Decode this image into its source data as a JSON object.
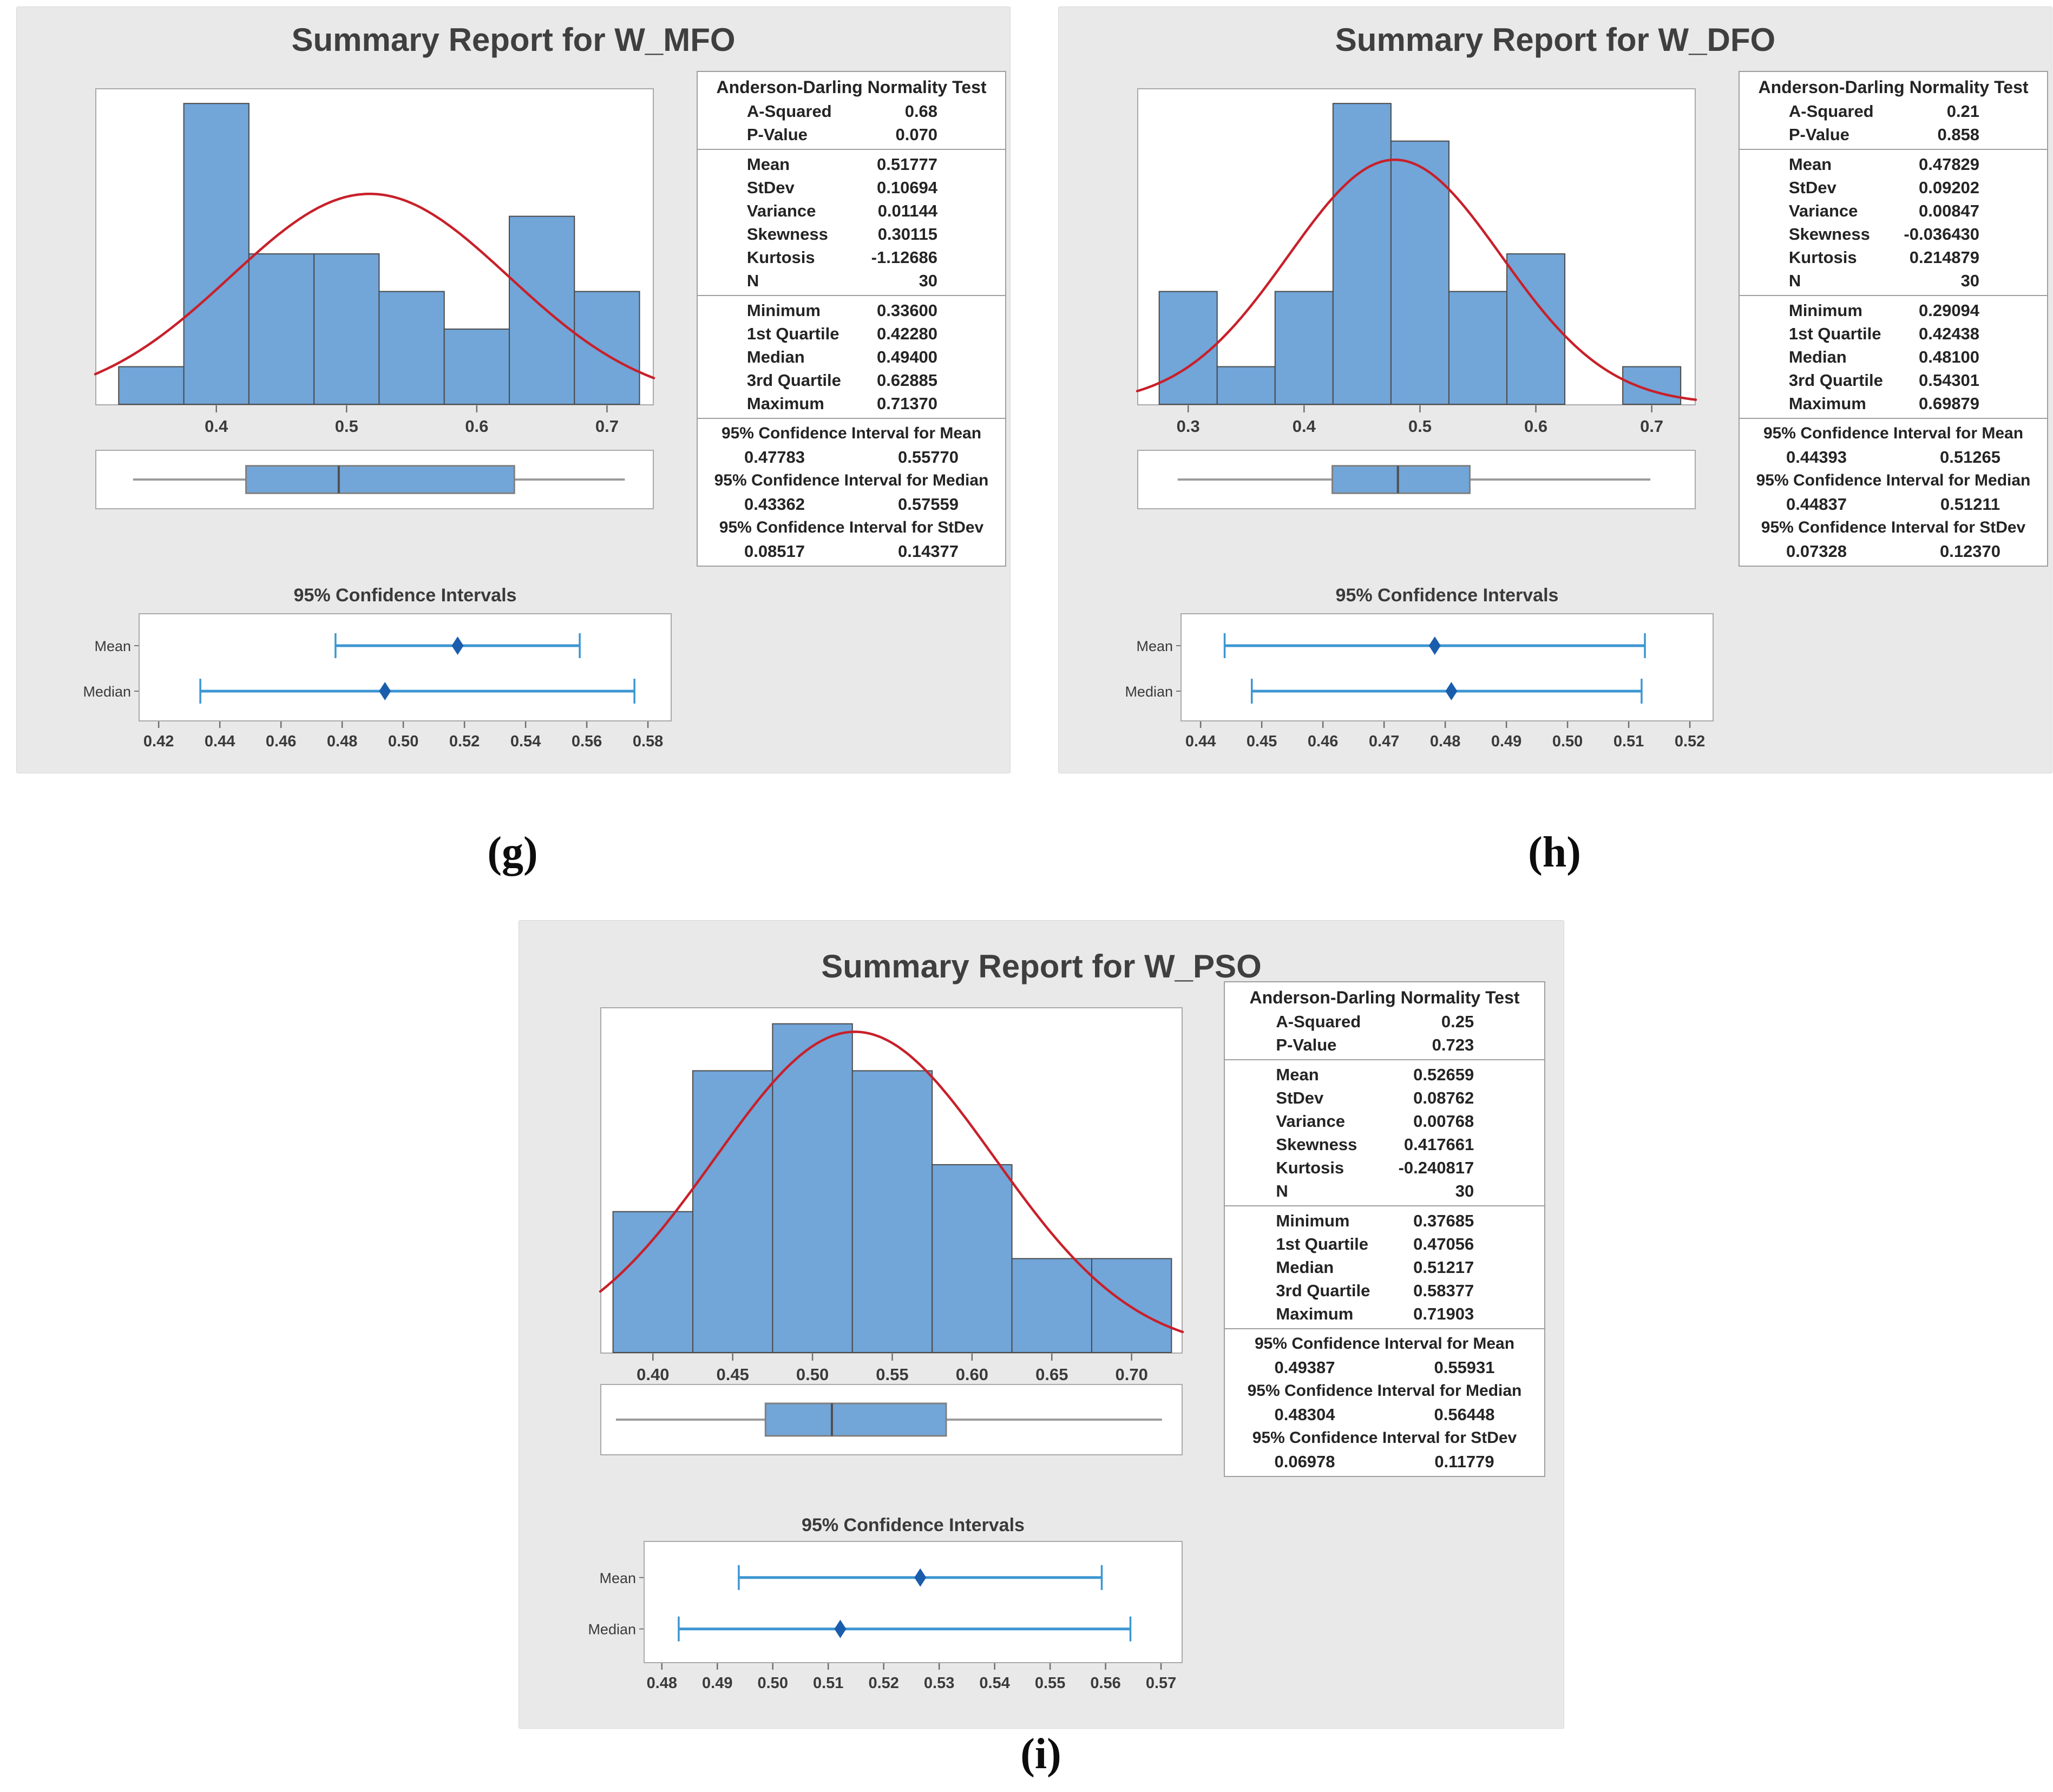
{
  "captions": [
    {
      "label": "(g)"
    },
    {
      "label": "(h)"
    },
    {
      "label": "(i)"
    }
  ],
  "colors": {
    "bar_fill": "#72a5d8",
    "bar_stroke": "#4a4a4a",
    "curve_red": "#c8202a",
    "interval_line": "#3c96d2",
    "interval_marker": "#1a5dad",
    "panel_bg": "#e9e9e9",
    "box_border": "#a9a9a9",
    "text_dark": "#3a3a3a"
  },
  "chart_data": [
    {
      "id": "g",
      "title": "Summary Report for W_MFO",
      "histogram": {
        "type": "histogram",
        "bin_width": 0.05,
        "bin_centers": [
          0.35,
          0.4,
          0.45,
          0.5,
          0.55,
          0.6,
          0.65,
          0.7
        ],
        "counts": [
          1,
          8,
          4,
          4,
          3,
          2,
          5,
          3
        ],
        "xticks": [
          "0.4",
          "0.5",
          "0.6",
          "0.7"
        ],
        "xmin": 0.307,
        "xmax": 0.736,
        "normal_curve": {
          "mean": 0.51777,
          "stdev": 0.10694,
          "n": 30
        }
      },
      "boxplot": {
        "type": "boxplot",
        "min": 0.336,
        "q1": 0.4228,
        "median": 0.494,
        "q3": 0.62885,
        "max": 0.7137
      },
      "stats_table": {
        "test_title": "Anderson-Darling Normality Test",
        "sections": [
          {
            "rows": [
              [
                "A-Squared",
                "0.68"
              ],
              [
                "P-Value",
                "0.070"
              ]
            ]
          },
          {
            "rows": [
              [
                "Mean",
                "0.51777"
              ],
              [
                "StDev",
                "0.10694"
              ],
              [
                "Variance",
                "0.01144"
              ],
              [
                "Skewness",
                "0.30115"
              ],
              [
                "Kurtosis",
                "-1.12686"
              ],
              [
                "N",
                "30"
              ]
            ]
          },
          {
            "rows": [
              [
                "Minimum",
                "0.33600"
              ],
              [
                "1st Quartile",
                "0.42280"
              ],
              [
                "Median",
                "0.49400"
              ],
              [
                "3rd Quartile",
                "0.62885"
              ],
              [
                "Maximum",
                "0.71370"
              ]
            ]
          }
        ],
        "ci_sections": [
          {
            "heading": "95% Confidence Interval for Mean",
            "low": "0.47783",
            "high": "0.55770"
          },
          {
            "heading": "95% Confidence Interval for Median",
            "low": "0.43362",
            "high": "0.57559"
          },
          {
            "heading": "95% Confidence Interval for StDev",
            "low": "0.08517",
            "high": "0.14377"
          }
        ]
      },
      "ci_plot": {
        "type": "interval",
        "title": "95% Confidence Intervals",
        "xticks": [
          "0.42",
          "0.44",
          "0.46",
          "0.48",
          "0.50",
          "0.52",
          "0.54",
          "0.56",
          "0.58"
        ],
        "rows": [
          {
            "label": "Mean",
            "low": 0.47783,
            "high": 0.5577,
            "center": 0.51777
          },
          {
            "label": "Median",
            "low": 0.43362,
            "high": 0.57559,
            "center": 0.494
          }
        ]
      }
    },
    {
      "id": "h",
      "title": "Summary Report for W_DFO",
      "histogram": {
        "type": "histogram",
        "bin_width": 0.05,
        "bin_centers": [
          0.3,
          0.35,
          0.4,
          0.45,
          0.5,
          0.55,
          0.6,
          0.65,
          0.7
        ],
        "counts": [
          3,
          1,
          3,
          8,
          7,
          3,
          4,
          0,
          1
        ],
        "xticks": [
          "0.3",
          "0.4",
          "0.5",
          "0.6",
          "0.7"
        ],
        "xmin": 0.256,
        "xmax": 0.738,
        "normal_curve": {
          "mean": 0.47829,
          "stdev": 0.09202,
          "n": 30
        }
      },
      "boxplot": {
        "type": "boxplot",
        "min": 0.29094,
        "q1": 0.42438,
        "median": 0.481,
        "q3": 0.54301,
        "max": 0.69879
      },
      "stats_table": {
        "test_title": "Anderson-Darling Normality Test",
        "sections": [
          {
            "rows": [
              [
                "A-Squared",
                "0.21"
              ],
              [
                "P-Value",
                "0.858"
              ]
            ]
          },
          {
            "rows": [
              [
                "Mean",
                "0.47829"
              ],
              [
                "StDev",
                "0.09202"
              ],
              [
                "Variance",
                "0.00847"
              ],
              [
                "Skewness",
                "-0.036430"
              ],
              [
                "Kurtosis",
                "0.214879"
              ],
              [
                "N",
                "30"
              ]
            ]
          },
          {
            "rows": [
              [
                "Minimum",
                "0.29094"
              ],
              [
                "1st Quartile",
                "0.42438"
              ],
              [
                "Median",
                "0.48100"
              ],
              [
                "3rd Quartile",
                "0.54301"
              ],
              [
                "Maximum",
                "0.69879"
              ]
            ]
          }
        ],
        "ci_sections": [
          {
            "heading": "95% Confidence Interval for Mean",
            "low": "0.44393",
            "high": "0.51265"
          },
          {
            "heading": "95% Confidence Interval for Median",
            "low": "0.44837",
            "high": "0.51211"
          },
          {
            "heading": "95% Confidence Interval for StDev",
            "low": "0.07328",
            "high": "0.12370"
          }
        ]
      },
      "ci_plot": {
        "type": "interval",
        "title": "95% Confidence Intervals",
        "xticks": [
          "0.44",
          "0.45",
          "0.46",
          "0.47",
          "0.48",
          "0.49",
          "0.50",
          "0.51",
          "0.52"
        ],
        "rows": [
          {
            "label": "Mean",
            "low": 0.44393,
            "high": 0.51265,
            "center": 0.47829
          },
          {
            "label": "Median",
            "low": 0.44837,
            "high": 0.51211,
            "center": 0.481
          }
        ]
      }
    },
    {
      "id": "i",
      "title": "Summary Report for W_PSO",
      "histogram": {
        "type": "histogram",
        "bin_width": 0.05,
        "bin_centers": [
          0.4,
          0.45,
          0.5,
          0.55,
          0.6,
          0.65,
          0.7
        ],
        "counts": [
          3,
          6,
          7,
          6,
          4,
          2,
          2
        ],
        "xticks": [
          "0.40",
          "0.45",
          "0.50",
          "0.55",
          "0.60",
          "0.65",
          "0.70"
        ],
        "xmin": 0.367,
        "xmax": 0.732,
        "normal_curve": {
          "mean": 0.52659,
          "stdev": 0.08762,
          "n": 30
        }
      },
      "boxplot": {
        "type": "boxplot",
        "min": 0.37685,
        "q1": 0.47056,
        "median": 0.51217,
        "q3": 0.58377,
        "max": 0.71903
      },
      "stats_table": {
        "test_title": "Anderson-Darling Normality Test",
        "sections": [
          {
            "rows": [
              [
                "A-Squared",
                "0.25"
              ],
              [
                "P-Value",
                "0.723"
              ]
            ]
          },
          {
            "rows": [
              [
                "Mean",
                "0.52659"
              ],
              [
                "StDev",
                "0.08762"
              ],
              [
                "Variance",
                "0.00768"
              ],
              [
                "Skewness",
                "0.417661"
              ],
              [
                "Kurtosis",
                "-0.240817"
              ],
              [
                "N",
                "30"
              ]
            ]
          },
          {
            "rows": [
              [
                "Minimum",
                "0.37685"
              ],
              [
                "1st Quartile",
                "0.47056"
              ],
              [
                "Median",
                "0.51217"
              ],
              [
                "3rd Quartile",
                "0.58377"
              ],
              [
                "Maximum",
                "0.71903"
              ]
            ]
          }
        ],
        "ci_sections": [
          {
            "heading": "95% Confidence Interval for Mean",
            "low": "0.49387",
            "high": "0.55931"
          },
          {
            "heading": "95% Confidence Interval for Median",
            "low": "0.48304",
            "high": "0.56448"
          },
          {
            "heading": "95% Confidence Interval for StDev",
            "low": "0.06978",
            "high": "0.11779"
          }
        ]
      },
      "ci_plot": {
        "type": "interval",
        "title": "95% Confidence Intervals",
        "xticks": [
          "0.48",
          "0.49",
          "0.50",
          "0.51",
          "0.52",
          "0.53",
          "0.54",
          "0.55",
          "0.56",
          "0.57"
        ],
        "rows": [
          {
            "label": "Mean",
            "low": 0.49387,
            "high": 0.55931,
            "center": 0.52659
          },
          {
            "label": "Median",
            "low": 0.48304,
            "high": 0.56448,
            "center": 0.51217
          }
        ]
      }
    }
  ]
}
